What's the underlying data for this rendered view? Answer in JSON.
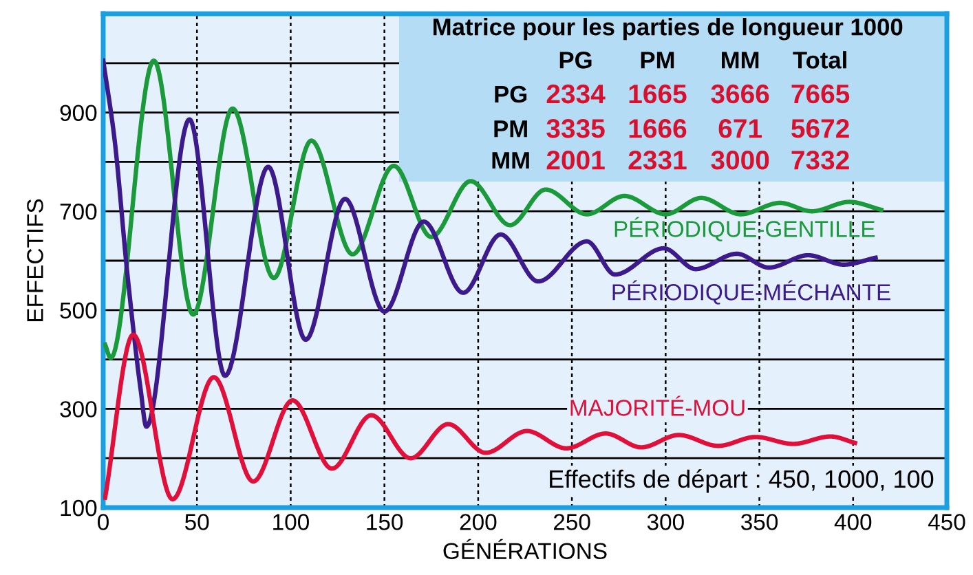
{
  "chart_data": {
    "type": "line",
    "xlabel": "GÉNÉRATIONS",
    "ylabel": "EFFECTIFS",
    "xlim": [
      0,
      450
    ],
    "xticks": [
      0,
      50,
      100,
      150,
      200,
      250,
      300,
      350,
      400,
      450
    ],
    "ylim": [
      100,
      1100
    ],
    "yticks": [
      100,
      {
        "value": 200,
        "label": null
      },
      300,
      {
        "value": 400,
        "label": null
      },
      500,
      {
        "value": 600,
        "label": null
      },
      700,
      {
        "value": 800,
        "label": null
      },
      900,
      {
        "value": 1000,
        "label": null
      }
    ],
    "grid": true,
    "legend": false,
    "marker": "none",
    "line_style": "solid",
    "series": [
      {
        "name": "PÉRIODIQUE-GENTILLE",
        "color": "#1a9a3a",
        "x": [
          1,
          4,
          27,
          48,
          69,
          91,
          111,
          133,
          155,
          175,
          196,
          217,
          236,
          258,
          278,
          300,
          319,
          340,
          361,
          378,
          398,
          415
        ],
        "values": [
          430,
          403,
          1005,
          491,
          908,
          565,
          843,
          613,
          792,
          648,
          761,
          672,
          744,
          694,
          731,
          694,
          727,
          694,
          717,
          700,
          719,
          703
        ]
      },
      {
        "name": "PÉRIODIQUE-MÉCHANTE",
        "color": "#3c1a8c",
        "x": [
          0,
          6,
          13,
          20,
          23,
          46,
          65,
          88,
          108,
          129,
          150,
          171,
          192,
          212,
          232,
          258,
          273,
          299,
          316,
          338,
          355,
          376,
          395,
          412
        ],
        "values": [
          1005,
          847,
          569,
          338,
          264,
          886,
          367,
          790,
          440,
          725,
          497,
          679,
          535,
          653,
          558,
          639,
          572,
          625,
          583,
          614,
          586,
          611,
          592,
          606
        ]
      },
      {
        "name": "MAJORITÉ-MOU",
        "color": "#e0103a",
        "x": [
          1,
          16,
          37,
          59,
          80,
          101,
          122,
          143,
          164,
          184,
          204,
          226,
          247,
          268,
          287,
          307,
          328,
          348,
          368,
          388,
          401
        ],
        "values": [
          120,
          450,
          117,
          364,
          153,
          317,
          179,
          287,
          200,
          269,
          211,
          255,
          220,
          250,
          222,
          247,
          225,
          243,
          229,
          244,
          231
        ]
      }
    ],
    "annotations": [
      "Effectifs de départ : 450, 1000, 100",
      "Matrice pour les parties de longueur 1000",
      "PG",
      "PM",
      "MM",
      "Total",
      "PG",
      "2334",
      "1665",
      "3666",
      "7665",
      "PM",
      "3335",
      "1666",
      "671",
      "5672",
      "MM",
      "2001",
      "2331",
      "3000",
      "7332"
    ]
  }
}
